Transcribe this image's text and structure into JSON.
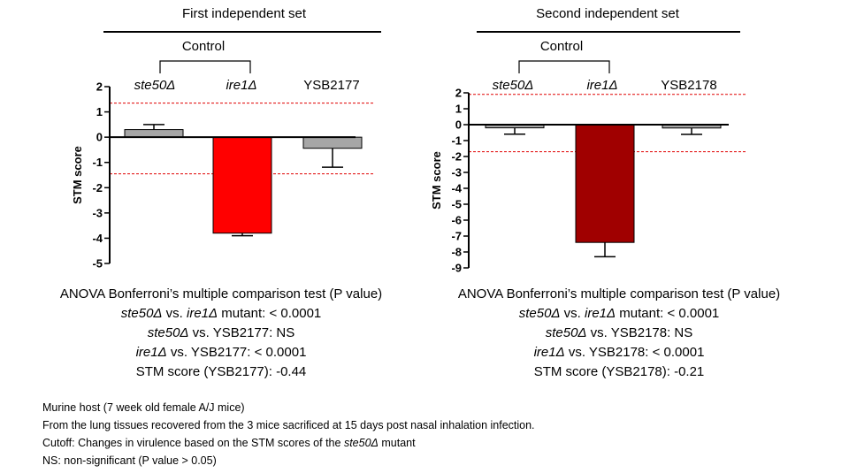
{
  "sets": [
    {
      "title": "First independent set",
      "control_label": "Control",
      "labels": [
        {
          "main": "ste50Δ",
          "italic": true
        },
        {
          "main": "ire1Δ",
          "italic": true
        },
        {
          "main": "YSB2177",
          "italic": false
        }
      ],
      "stats": {
        "heading": "ANOVA Bonferroni’s multiple comparison test (P value)",
        "line1": {
          "a": "ste50Δ",
          "b": " vs. ",
          "c": "ire1Δ",
          "d": " mutant: < 0.0001"
        },
        "line2": {
          "a": "ste50Δ",
          "b": " vs. YSB2177: NS"
        },
        "line3": {
          "a": "ire1Δ",
          "b": " vs. YSB2177: < 0.0001"
        },
        "line4": "STM score (YSB2177): -0.44"
      }
    },
    {
      "title": "Second independent set",
      "control_label": "Control",
      "labels": [
        {
          "main": "ste50Δ",
          "italic": true
        },
        {
          "main": "ire1Δ",
          "italic": true
        },
        {
          "main": "YSB2178",
          "italic": false
        }
      ],
      "stats": {
        "heading": "ANOVA Bonferroni’s multiple comparison test (P value)",
        "line1": {
          "a": "ste50Δ",
          "b": " vs. ",
          "c": "ire1Δ",
          "d": " mutant: < 0.0001"
        },
        "line2": {
          "a": "ste50Δ",
          "b": " vs. YSB2178: NS"
        },
        "line3": {
          "a": "ire1Δ",
          "b": " vs. YSB2178: < 0.0001"
        },
        "line4": "STM score (YSB2178): -0.21"
      }
    }
  ],
  "chart_data": [
    {
      "type": "bar",
      "categories": [
        "ste50Δ",
        "ire1Δ",
        "YSB2177"
      ],
      "values": [
        0.3,
        -3.8,
        -0.44
      ],
      "errors": [
        0.2,
        0.1,
        0.75
      ],
      "colors": [
        "#a6a6a6",
        "#ff0000",
        "#a6a6a6"
      ],
      "ylabel": "STM score",
      "ylim": [
        -5,
        2
      ],
      "yticks": [
        2,
        1,
        0,
        -1,
        -2,
        -3,
        -4,
        -5
      ],
      "cutoffs": [
        1.35,
        -1.45
      ],
      "cutoff_color": "#e00000"
    },
    {
      "type": "bar",
      "categories": [
        "ste50Δ",
        "ire1Δ",
        "YSB2178"
      ],
      "values": [
        -0.2,
        -7.4,
        -0.21
      ],
      "errors": [
        0.4,
        0.9,
        0.4
      ],
      "colors": [
        "#a6a6a6",
        "#a00000",
        "#a6a6a6"
      ],
      "ylabel": "STM score",
      "ylim": [
        -9,
        2
      ],
      "yticks": [
        2,
        1,
        0,
        -1,
        -2,
        -3,
        -4,
        -5,
        -6,
        -7,
        -8,
        -9
      ],
      "cutoffs": [
        1.9,
        -1.7
      ],
      "cutoff_color": "#e00000"
    }
  ],
  "footnotes": {
    "line1": "Murine host (7 week old female A/J mice)",
    "line2": "From the lung tissues recovered from the 3 mice sacrificed at 15 days post nasal inhalation infection.",
    "line3": {
      "a": "Cutoff: Changes in virulence based on the STM scores of the ",
      "b": "ste50Δ",
      "c": " mutant"
    },
    "line4": "NS: non-significant (P value > 0.05)"
  }
}
